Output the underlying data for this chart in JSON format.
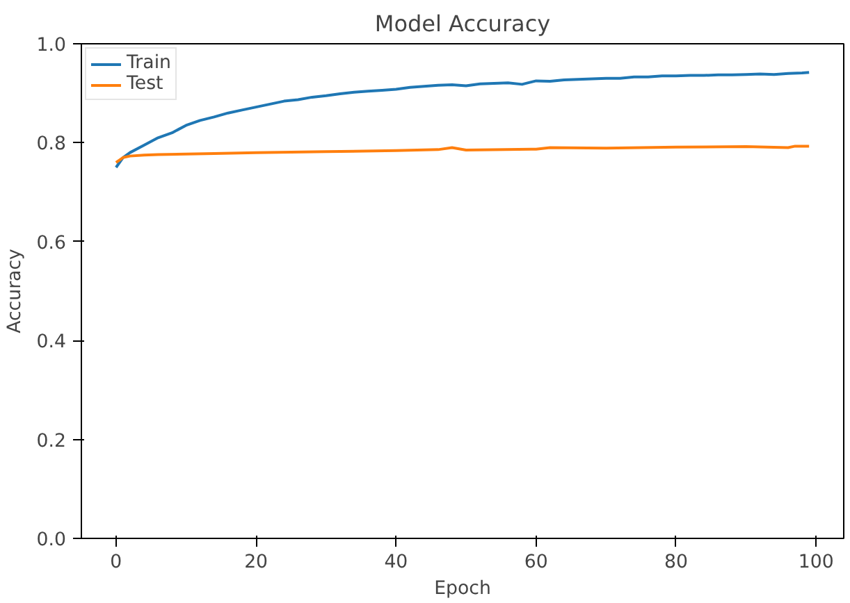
{
  "chart_data": {
    "type": "line",
    "title": "Model Accuracy",
    "xlabel": "Epoch",
    "ylabel": "Accuracy",
    "xlim": [
      -4.95,
      103.95
    ],
    "xticks": [
      0,
      20,
      40,
      60,
      80,
      100
    ],
    "ylim": [
      0.0,
      1.0
    ],
    "yticks": [
      {
        "value": 0.0,
        "label": "0.0"
      },
      0.2,
      0.4,
      0.6,
      0.8,
      {
        "value": 1.0,
        "label": "1.0"
      }
    ],
    "grid": false,
    "legend": "top left",
    "marker": "none",
    "line_style": "solid",
    "series": [
      {
        "name": "Train",
        "color": "#1f77b4",
        "x": [
          0,
          1,
          2,
          4,
          6,
          8,
          10,
          12,
          14,
          16,
          18,
          20,
          22,
          24,
          26,
          28,
          30,
          32,
          34,
          36,
          38,
          40,
          42,
          44,
          46,
          48,
          50,
          52,
          54,
          56,
          58,
          60,
          62,
          64,
          66,
          68,
          70,
          72,
          74,
          76,
          78,
          80,
          82,
          84,
          86,
          88,
          90,
          92,
          94,
          96,
          98,
          99
        ],
        "values": [
          0.75,
          0.77,
          0.78,
          0.795,
          0.81,
          0.82,
          0.835,
          0.845,
          0.852,
          0.86,
          0.866,
          0.872,
          0.878,
          0.884,
          0.887,
          0.892,
          0.895,
          0.899,
          0.902,
          0.904,
          0.906,
          0.908,
          0.912,
          0.914,
          0.916,
          0.917,
          0.915,
          0.919,
          0.92,
          0.921,
          0.918,
          0.925,
          0.924,
          0.927,
          0.928,
          0.929,
          0.93,
          0.93,
          0.933,
          0.933,
          0.935,
          0.935,
          0.936,
          0.936,
          0.937,
          0.937,
          0.938,
          0.939,
          0.938,
          0.94,
          0.941,
          0.942
        ]
      },
      {
        "name": "Test",
        "color": "#ff7f0e",
        "x": [
          0,
          1,
          2,
          4,
          6,
          10,
          14,
          20,
          30,
          40,
          46,
          48,
          50,
          60,
          62,
          70,
          80,
          90,
          96,
          97,
          99
        ],
        "values": [
          0.76,
          0.77,
          0.773,
          0.775,
          0.776,
          0.777,
          0.778,
          0.78,
          0.782,
          0.784,
          0.786,
          0.79,
          0.785,
          0.787,
          0.79,
          0.789,
          0.791,
          0.792,
          0.79,
          0.793,
          0.793
        ]
      }
    ]
  }
}
